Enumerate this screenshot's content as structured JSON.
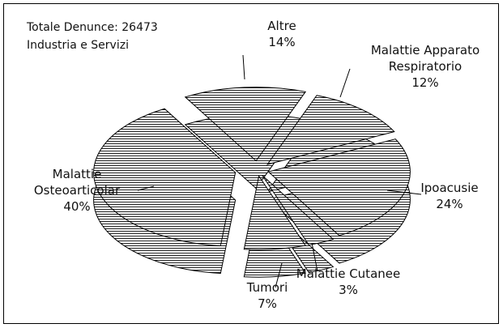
{
  "chart_data": {
    "type": "pie",
    "annotations": [
      "Totale Denunce: 26473",
      "Industria e Servizi"
    ],
    "categories": [
      "Altre",
      "Malattie Apparato Respiratorio",
      "Ipoacusie",
      "Malattie Cutanee",
      "Tumori",
      "Malattie Osteoarticolar"
    ],
    "values": [
      14,
      12,
      24,
      3,
      7,
      40
    ],
    "value_labels": [
      "14%",
      "12%",
      "24%",
      "3%",
      "7%",
      "40%"
    ],
    "color": "#000000"
  }
}
